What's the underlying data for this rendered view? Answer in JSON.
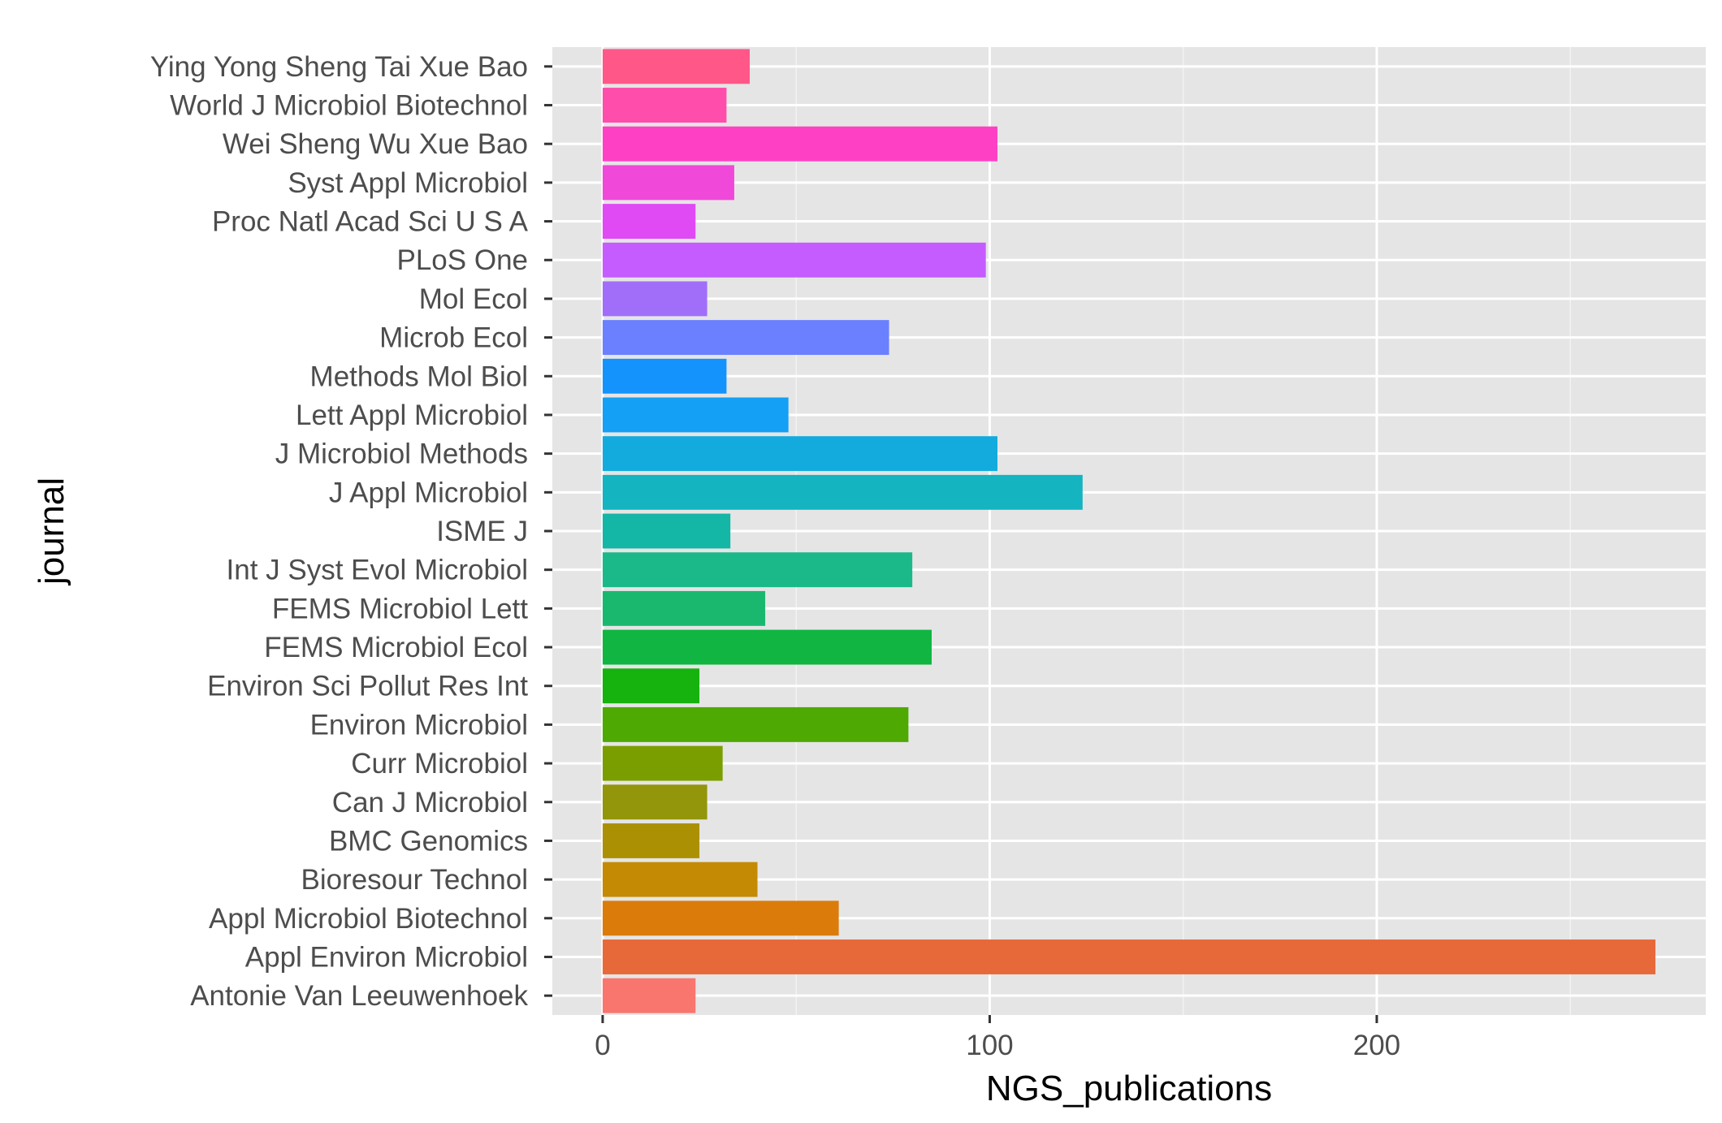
{
  "chart_data": {
    "type": "bar",
    "orientation": "horizontal",
    "xlabel": "NGS_publications",
    "ylabel": "journal",
    "xlim": [
      -13,
      285
    ],
    "xticks": [
      0,
      100,
      200
    ],
    "grid": true,
    "categories": [
      "Antonie Van Leeuwenhoek",
      "Appl Environ Microbiol",
      "Appl Microbiol Biotechnol",
      "Bioresour Technol",
      "BMC Genomics",
      "Can J Microbiol",
      "Curr Microbiol",
      "Environ Microbiol",
      "Environ Sci Pollut Res Int",
      "FEMS Microbiol Ecol",
      "FEMS Microbiol Lett",
      "Int J Syst Evol Microbiol",
      "ISME J",
      "J Appl Microbiol",
      "J Microbiol Methods",
      "Lett Appl Microbiol",
      "Methods Mol Biol",
      "Microb Ecol",
      "Mol Ecol",
      "PLoS One",
      "Proc Natl Acad Sci U S A",
      "Syst Appl Microbiol",
      "Wei Sheng Wu Xue Bao",
      "World J Microbiol Biotechnol",
      "Ying Yong Sheng Tai Xue Bao"
    ],
    "values": [
      24,
      272,
      61,
      40,
      25,
      27,
      31,
      79,
      25,
      85,
      42,
      80,
      33,
      124,
      102,
      48,
      32,
      74,
      27,
      99,
      24,
      34,
      102,
      32,
      38
    ],
    "colors": [
      "#F8766D",
      "#E7693A",
      "#DB7C0A",
      "#C48A04",
      "#AC9003",
      "#93950B",
      "#7A9E00",
      "#4EA903",
      "#16B20E",
      "#10B542",
      "#1AB86F",
      "#1BB98A",
      "#14B6A6",
      "#14B4C1",
      "#13ABDD",
      "#14A0F4",
      "#1493FC",
      "#6A80FF",
      "#A16EF9",
      "#C45CFF",
      "#DF4AF4",
      "#F048D9",
      "#FE41C4",
      "#FF4DAC",
      "#FF5888"
    ]
  }
}
